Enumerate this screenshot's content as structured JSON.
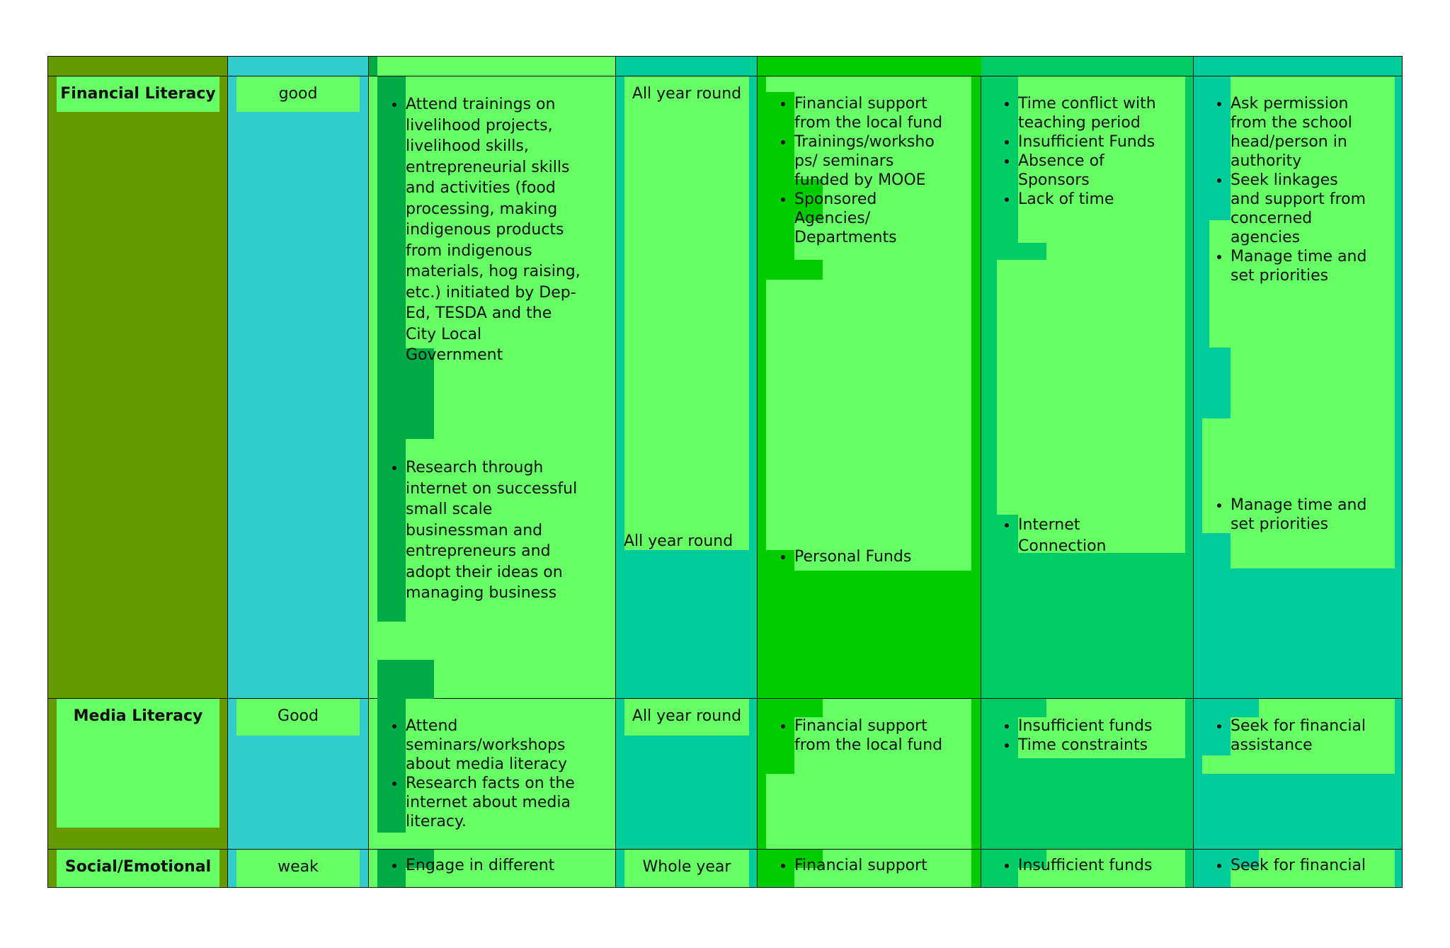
{
  "colors": {
    "col1": "#669900",
    "col2": "#33cccc",
    "col3": "#66ff66",
    "col4": "#00cc99",
    "col5": "#00cc00",
    "col6": "#00cc66",
    "col7": "#00cc99",
    "cell_fill": "#66ff66",
    "bullet_strip": "#00aa44"
  },
  "rows": [
    {
      "area": "Financial Literacy",
      "rating": "good",
      "activities": [
        "Attend trainings on livelihood projects, livelihood skills, entrepreneurial skills and activities (food processing, making indigenous products from indigenous materials, hog raising, etc.) initiated by Dep-Ed, TESDA and the City Local Government",
        "Research through internet on successful small scale businessman and entrepreneurs and adopt their ideas on managing business"
      ],
      "timeframe": [
        "All year round",
        "All year round"
      ],
      "resources": [
        [
          "Financial support from the local fund",
          "Trainings/worksho ps/ seminars funded by MOOE",
          "Sponsored Agencies/ Departments"
        ],
        [
          "Personal Funds"
        ]
      ],
      "challenges": [
        [
          "Time conflict with teaching period",
          "Insufficient Funds",
          "Absence of Sponsors",
          "Lack of time"
        ],
        [
          "Internet Connection"
        ]
      ],
      "solutions": [
        [
          "Ask permission from the school head/person in authority",
          "Seek linkages and support from concerned agencies",
          "Manage time and set priorities"
        ],
        [
          "Manage time and set priorities"
        ]
      ]
    },
    {
      "area": "Media Literacy",
      "rating": "Good",
      "activities": [
        "Attend seminars/workshops about media literacy",
        "Research facts on the internet about media literacy."
      ],
      "timeframe": [
        "All year round"
      ],
      "resources": [
        [
          "Financial support from the local fund"
        ]
      ],
      "challenges": [
        [
          "Insufficient funds",
          "Time constraints"
        ]
      ],
      "solutions": [
        [
          "Seek for financial assistance"
        ]
      ]
    },
    {
      "area": "Social/Emotional",
      "rating": "weak",
      "activities": [
        "Engage in different"
      ],
      "timeframe": [
        "Whole year"
      ],
      "resources": [
        [
          "Financial support"
        ]
      ],
      "challenges": [
        [
          "Insufficient funds"
        ]
      ],
      "solutions": [
        [
          "Seek for financial"
        ]
      ]
    }
  ]
}
